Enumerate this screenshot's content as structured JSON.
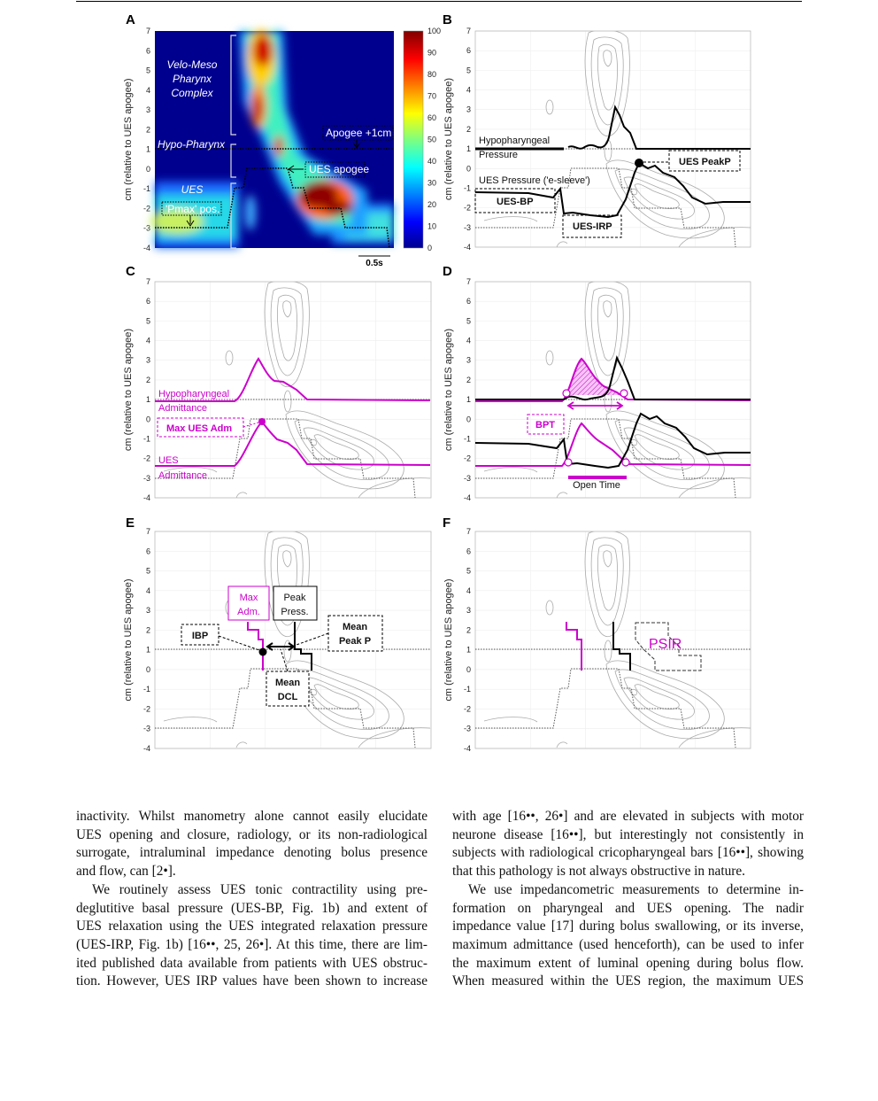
{
  "figure": {
    "panels": [
      {
        "letter": "A"
      },
      {
        "letter": "B"
      },
      {
        "letter": "C"
      },
      {
        "letter": "D"
      },
      {
        "letter": "E"
      },
      {
        "letter": "F"
      }
    ],
    "y_axis_label": "cm (relative to UES apogee)",
    "y_ticks": [
      "7",
      "6",
      "5",
      "4",
      "3",
      "2",
      "1",
      "0",
      "-1",
      "-2",
      "-3",
      "-4"
    ],
    "colorbar_ticks": [
      "100",
      "90",
      "80",
      "70",
      "60",
      "50",
      "40",
      "30",
      "20",
      "10",
      "0"
    ],
    "colors": {
      "magenta": "#cc00cc",
      "heatmap_background": "#00008f",
      "contour": "#aaaaaa"
    },
    "panel_a": {
      "region_velo": [
        "Velo-Meso",
        "Pharynx",
        "Complex"
      ],
      "region_hypo": "Hypo-Pharynx",
      "region_ues": "UES",
      "pmax_label": "'Pmax' pos.",
      "apogee_plus_label": "Apogee +1cm",
      "ues_apogee_label": "UES apogee",
      "scale_bar_label": "0.5s"
    },
    "panel_b": {
      "hypo_label": [
        "Hypopharyngeal",
        "Pressure"
      ],
      "ues_pressure_label": "UES Pressure ('e-sleeve')",
      "ues_bp": "UES-BP",
      "ues_irp": "UES-IRP",
      "ues_peakp": "UES PeakP"
    },
    "panel_c": {
      "hypo_label": [
        "Hypopharyngeal",
        "Admittance"
      ],
      "max_ues_adm": "Max UES Adm",
      "ues_label": [
        "UES",
        "Admittance"
      ]
    },
    "panel_d": {
      "bpt": "BPT",
      "open_time": "Open Time"
    },
    "panel_e": {
      "max_adm": [
        "Max",
        "Adm."
      ],
      "peak_press": [
        "Peak",
        "Press."
      ],
      "ibp": "IBP",
      "mean_peak_p": [
        "Mean",
        "Peak P"
      ],
      "mean_dcl": [
        "Mean",
        "DCL"
      ]
    },
    "panel_f": {
      "psir": "PSIR"
    }
  },
  "body_text": {
    "left": [
      "inactivity. Whilst manometry alone cannot easily elucidate",
      "UES opening and closure, radiology, or its non-radiological",
      "surrogate, intraluminal impedance denoting bolus presence",
      "and flow, can [2•].",
      "We routinely assess UES tonic contractility using pre-",
      "deglutitive basal pressure (UES-BP, Fig. 1b) and extent of",
      "UES relaxation using the UES integrated relaxation pressure",
      "(UES-IRP, Fig. 1b) [16••, 25, 26•]. At this time, there are lim-",
      "ited published data available from patients with UES obstruc-",
      "tion. However, UES IRP values have been shown to increase"
    ],
    "right": [
      "with age [16••, 26•] and are elevated in subjects with motor",
      "neurone disease [16••], but interestingly not consistently in",
      "subjects with radiological cricopharyngeal bars [16••], showing",
      "that this pathology is not always obstructive in nature.",
      "We use impedancometric measurements to determine in-",
      "formation on pharyngeal and UES opening. The nadir",
      "impedance value [17] during bolus swallowing, or its inverse,",
      "maximum admittance (used henceforth), can be used to infer",
      "the maximum extent of luminal opening during bolus flow.",
      "When measured within the UES region, the maximum UES"
    ]
  }
}
